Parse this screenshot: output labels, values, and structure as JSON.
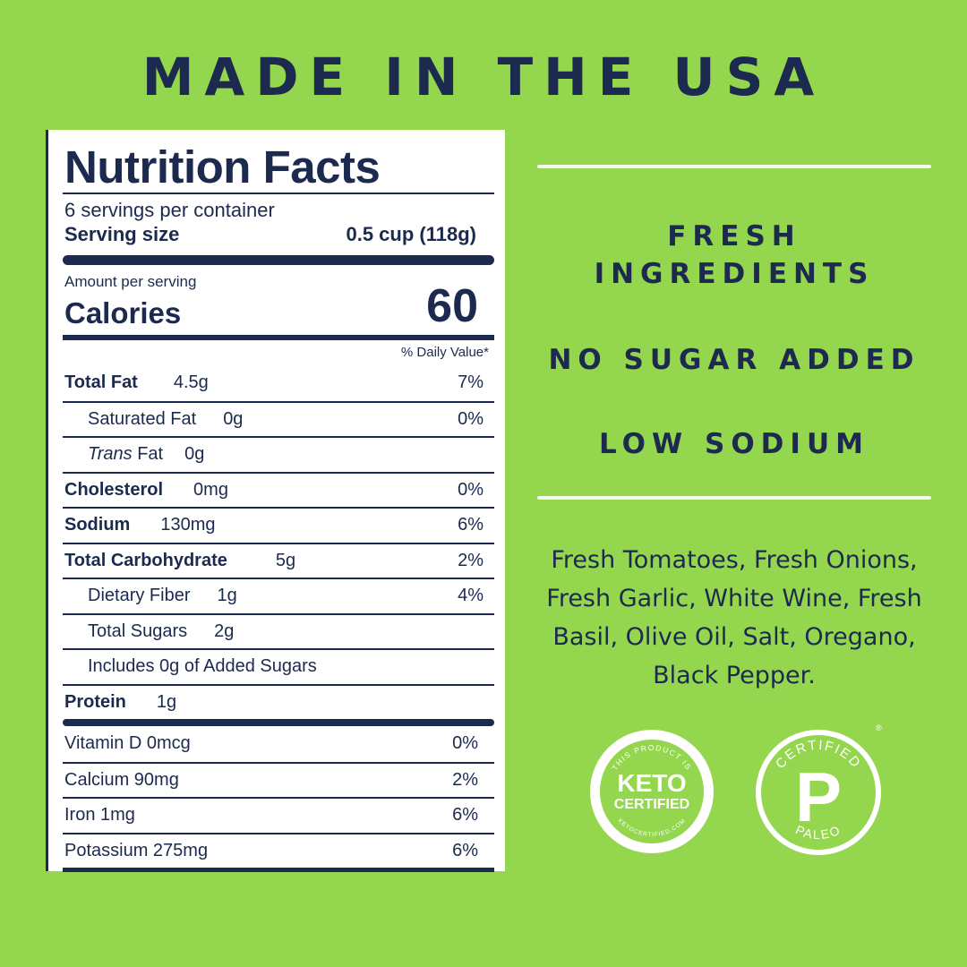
{
  "headline": "MADE IN THE USA",
  "nutrition": {
    "title": "Nutrition Facts",
    "servings_per_container": "6 servings per container",
    "serving_size_label": "Serving size",
    "serving_size_value": "0.5 cup (118g)",
    "amount_per_serving": "Amount per serving",
    "calories_label": "Calories",
    "calories_value": "60",
    "daily_value_header": "% Daily Value*",
    "nutrients": [
      {
        "name": "Total Fat",
        "amount": "4.5g",
        "pct": "7%",
        "bold": true
      },
      {
        "name": "Saturated Fat",
        "amount": "0g",
        "pct": "0%",
        "indent": true
      },
      {
        "name_italic": "Trans",
        "name": " Fat",
        "amount": "0g",
        "pct": "",
        "indent": true
      },
      {
        "name": "Cholesterol",
        "amount": "0mg",
        "pct": "0%",
        "bold": true
      },
      {
        "name": "Sodium",
        "amount": "130mg",
        "pct": "6%",
        "bold": true
      },
      {
        "name": "Total Carbohydrate",
        "amount": "5g",
        "pct": "2%",
        "bold": true
      },
      {
        "name": "Dietary Fiber",
        "amount": "1g",
        "pct": "4%",
        "indent": true
      },
      {
        "name": "Total Sugars",
        "amount": "2g",
        "pct": "",
        "indent": true
      },
      {
        "name": "Includes 0g of Added Sugars",
        "amount": "",
        "pct": "",
        "indent": true
      },
      {
        "name": "Protein",
        "amount": "1g",
        "pct": "",
        "bold": true
      }
    ],
    "vitamins": [
      {
        "name": "Vitamin D 0mcg",
        "pct": "0%"
      },
      {
        "name": "Calcium 90mg",
        "pct": "2%"
      },
      {
        "name": "Iron 1mg",
        "pct": "6%"
      },
      {
        "name": "Potassium 275mg",
        "pct": "6%"
      }
    ]
  },
  "claims": {
    "fresh_line1": "FRESH",
    "fresh_line2": "INGREDIENTS",
    "no_sugar": "NO SUGAR ADDED",
    "low_sodium": "LOW SODIUM"
  },
  "ingredients": "Fresh Tomatoes, Fresh Onions, Fresh Garlic, White Wine, Fresh Basil, Olive Oil, Salt, Oregano, Black Pepper.",
  "badges": {
    "keto": {
      "top_text": "THIS PRODUCT IS",
      "line1": "KETO",
      "line2": "CERTIFIED",
      "bottom_text": "KETOCERTIFIED.COM"
    },
    "paleo": {
      "top_text": "CERTIFIED",
      "letter": "P",
      "bottom_text": "PALEO",
      "mark": "®"
    }
  },
  "colors": {
    "background": "#95d64f",
    "navy": "#1b2a4e",
    "white": "#ffffff"
  }
}
